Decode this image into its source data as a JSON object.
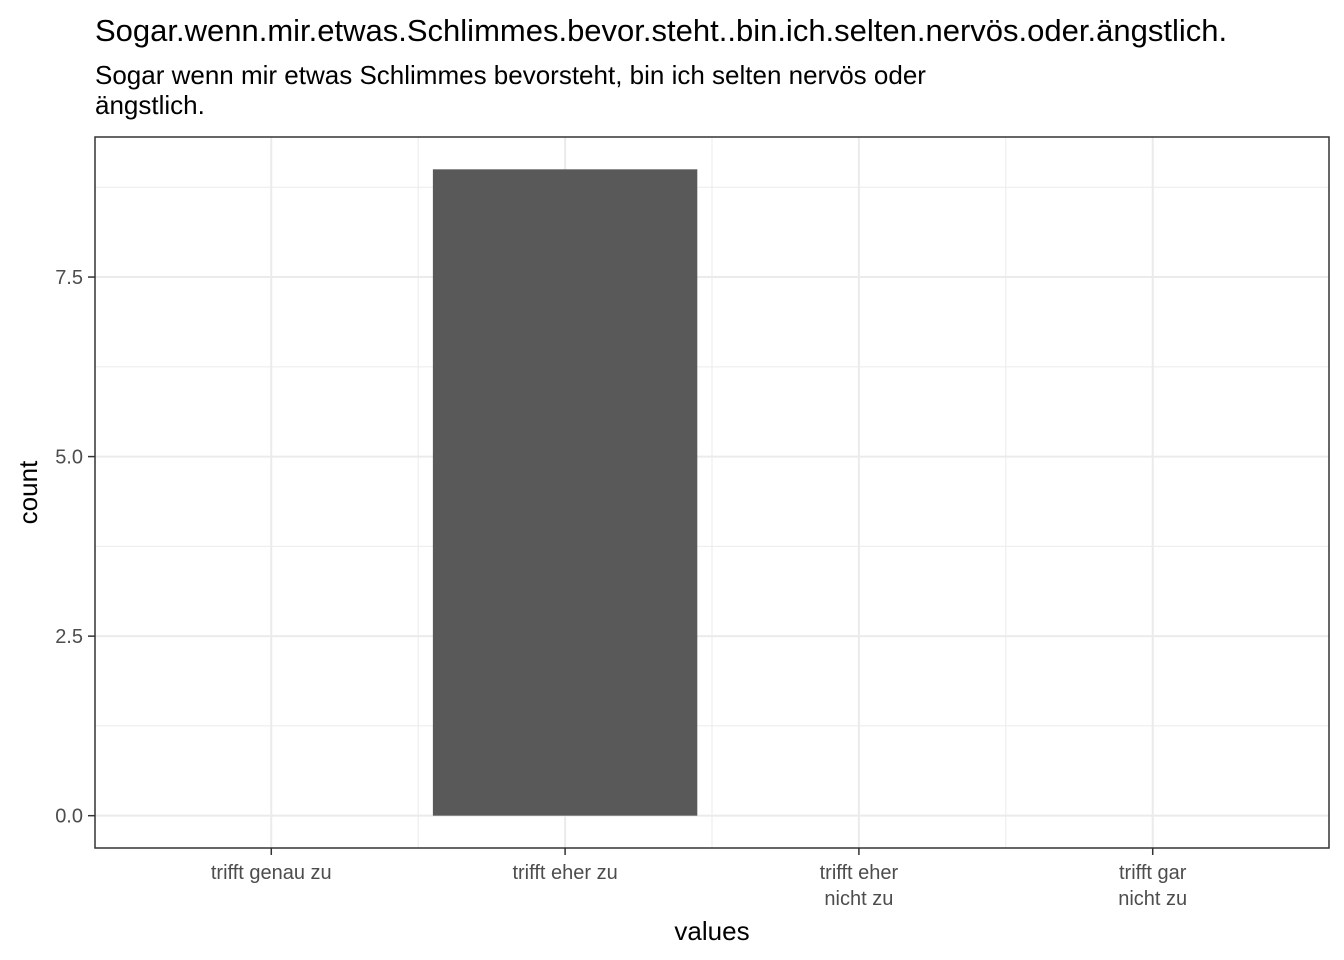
{
  "chart_data": {
    "type": "bar",
    "title": "Sogar.wenn.mir.etwas.Schlimmes.bevor.steht..bin.ich.selten.nervös.oder.ängstlich.",
    "subtitle_lines": [
      "Sogar wenn mir etwas Schlimmes bevorsteht, bin ich selten nervös oder",
      "ängstlich."
    ],
    "categories": [
      [
        "trifft genau zu"
      ],
      [
        "trifft eher zu"
      ],
      [
        "trifft eher",
        "nicht zu"
      ],
      [
        "trifft gar",
        "nicht zu"
      ]
    ],
    "values": [
      0,
      9,
      0,
      0
    ],
    "xlabel": "values",
    "ylabel": "count",
    "ylim": [
      -0.45,
      9.45
    ],
    "yticks": [
      0.0,
      2.5,
      5.0,
      7.5
    ],
    "ytick_labels": [
      "0.0",
      "2.5",
      "5.0",
      "7.5"
    ],
    "grid": true,
    "bar_color": "#595959",
    "grid_color": "#ebebeb",
    "panel_border_color": "#333333"
  }
}
